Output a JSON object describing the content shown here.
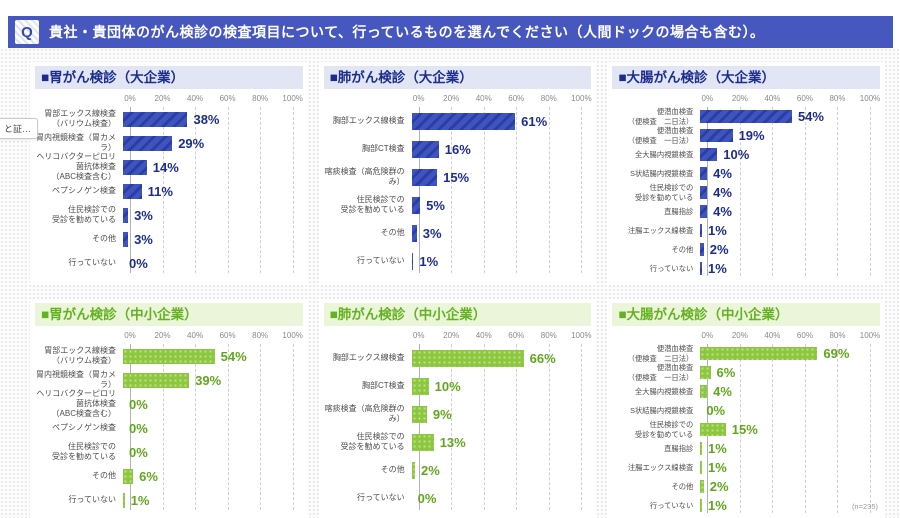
{
  "header": {
    "icon": "Q",
    "question": "貴社・貴団体のがん検診の検査項目について、行っているものを選んでください（人間ドックの場合も含む）。"
  },
  "tooltip_fragment": "と証…",
  "footnote": "(n=235)",
  "axis_ticks": [
    "0%",
    "20%",
    "40%",
    "60%",
    "80%",
    "100%"
  ],
  "themes": {
    "blue": {
      "title_bg": "#e2e6f4",
      "title_color": "#1d2d8d",
      "bar": "#4054bd",
      "bar_stripe": "#2b3da8",
      "value_color": "#1d2d8d"
    },
    "green": {
      "title_bg": "#eaf5d9",
      "title_color": "#65b221",
      "bar": "#8dc63f",
      "bar_dot": "#bce38a",
      "value_color": "#61a71d"
    }
  },
  "chart_data": [
    {
      "type": "bar",
      "orientation": "horizontal",
      "theme": "blue",
      "title": "■胃がん検診（大企業）",
      "xlim": [
        0,
        100
      ],
      "x_ticks": [
        0,
        20,
        40,
        60,
        80,
        100
      ],
      "grid": true,
      "categories": [
        "胃部エックス線検査\n（バリウム検査）",
        "胃内視鏡検査（胃カメラ）",
        "ヘリコバクターピロリ菌抗体検査\n（ABC検査含む）",
        "ペプシノゲン検査",
        "住民検診での\n受診を勧めている",
        "その他",
        "行っていない"
      ],
      "values": [
        38,
        29,
        14,
        11,
        3,
        3,
        0
      ]
    },
    {
      "type": "bar",
      "orientation": "horizontal",
      "theme": "blue",
      "title": "■肺がん検診（大企業）",
      "xlim": [
        0,
        100
      ],
      "x_ticks": [
        0,
        20,
        40,
        60,
        80,
        100
      ],
      "grid": true,
      "categories": [
        "胸部エックス線検査",
        "胸部CT検査",
        "喀痰検査（高危険群のみ）",
        "住民検診での\n受診を勧めている",
        "その他",
        "行っていない"
      ],
      "values": [
        61,
        16,
        15,
        5,
        3,
        1
      ]
    },
    {
      "type": "bar",
      "orientation": "horizontal",
      "theme": "blue",
      "title": "■大腸がん検診（大企業）",
      "xlim": [
        0,
        100
      ],
      "x_ticks": [
        0,
        20,
        40,
        60,
        80,
        100
      ],
      "grid": true,
      "categories": [
        "便潜血検査\n（便検査　二日法）",
        "便潜血検査\n（便検査　一日法）",
        "全大腸内視鏡検査",
        "S状結腸内視鏡検査",
        "住民検診での\n受診を勧めている",
        "直腸指診",
        "注腸エックス線検査",
        "その他",
        "行っていない"
      ],
      "values": [
        54,
        19,
        10,
        4,
        4,
        4,
        1,
        2,
        1
      ]
    },
    {
      "type": "bar",
      "orientation": "horizontal",
      "theme": "green",
      "title": "■胃がん検診（中小企業）",
      "xlim": [
        0,
        100
      ],
      "x_ticks": [
        0,
        20,
        40,
        60,
        80,
        100
      ],
      "grid": true,
      "categories": [
        "胃部エックス線検査\n（バリウム検査）",
        "胃内視鏡検査（胃カメラ）",
        "ヘリコバクターピロリ菌抗体検査\n（ABC検査含む）",
        "ペプシノゲン検査",
        "住民検診での\n受診を勧めている",
        "その他",
        "行っていない"
      ],
      "values": [
        54,
        39,
        0,
        0,
        0,
        6,
        1
      ]
    },
    {
      "type": "bar",
      "orientation": "horizontal",
      "theme": "green",
      "title": "■肺がん検診（中小企業）",
      "xlim": [
        0,
        100
      ],
      "x_ticks": [
        0,
        20,
        40,
        60,
        80,
        100
      ],
      "grid": true,
      "categories": [
        "胸部エックス線検査",
        "胸部CT検査",
        "喀痰検査（高危険群のみ）",
        "住民検診での\n受診を勧めている",
        "その他",
        "行っていない"
      ],
      "values": [
        66,
        10,
        9,
        13,
        2,
        0
      ]
    },
    {
      "type": "bar",
      "orientation": "horizontal",
      "theme": "green",
      "title": "■大腸がん検診（中小企業）",
      "xlim": [
        0,
        100
      ],
      "x_ticks": [
        0,
        20,
        40,
        60,
        80,
        100
      ],
      "grid": true,
      "categories": [
        "便潜血検査\n（便検査　二日法）",
        "便潜血検査\n（便検査　一日法）",
        "全大腸内視鏡検査",
        "S状結腸内視鏡検査",
        "住民検診での\n受診を勧めている",
        "直腸指診",
        "注腸エックス線検査",
        "その他",
        "行っていない"
      ],
      "values": [
        69,
        6,
        4,
        0,
        15,
        1,
        1,
        2,
        1
      ]
    }
  ]
}
